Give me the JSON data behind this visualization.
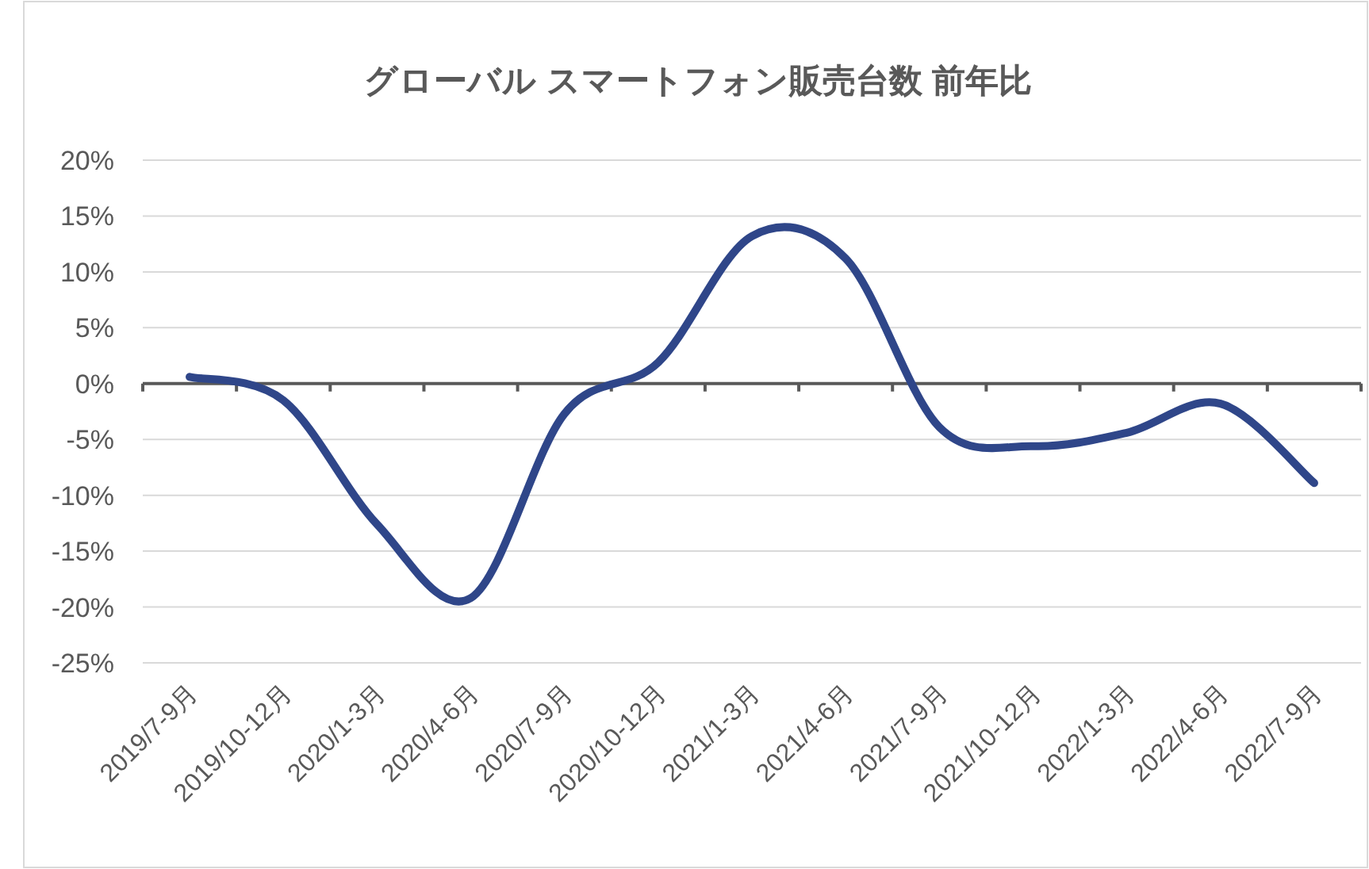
{
  "chart_data": {
    "type": "line",
    "title": "グローバル スマートフォン販売台数 前年比",
    "categories": [
      "2019/7-9月",
      "2019/10-12月",
      "2020/1-3月",
      "2020/4-6月",
      "2020/7-9月",
      "2020/10-12月",
      "2021/1-3月",
      "2021/4-6月",
      "2021/7-9月",
      "2021/10-12月",
      "2022/1-3月",
      "2022/4-6月",
      "2022/7-9月"
    ],
    "series": [
      {
        "color": "#2f4689",
        "values": [
          0.6,
          -1.5,
          -12.6,
          -19.2,
          -2.7,
          1.9,
          13.2,
          11.2,
          -3.9,
          -5.6,
          -4.4,
          -1.8,
          -8.9
        ]
      }
    ],
    "ylim": [
      -25,
      20
    ],
    "yticks": [
      {
        "value": -25,
        "label": "-25%"
      },
      {
        "value": -20,
        "label": "-20%"
      },
      {
        "value": -15,
        "label": "-15%"
      },
      {
        "value": -10,
        "label": "-10%"
      },
      {
        "value": -5,
        "label": "-5%"
      },
      {
        "value": 0,
        "label": "0%"
      },
      {
        "value": 5,
        "label": "5%"
      },
      {
        "value": 10,
        "label": "10%"
      },
      {
        "value": 15,
        "label": "15%"
      },
      {
        "value": 20,
        "label": "20%"
      }
    ],
    "grid": "y"
  }
}
